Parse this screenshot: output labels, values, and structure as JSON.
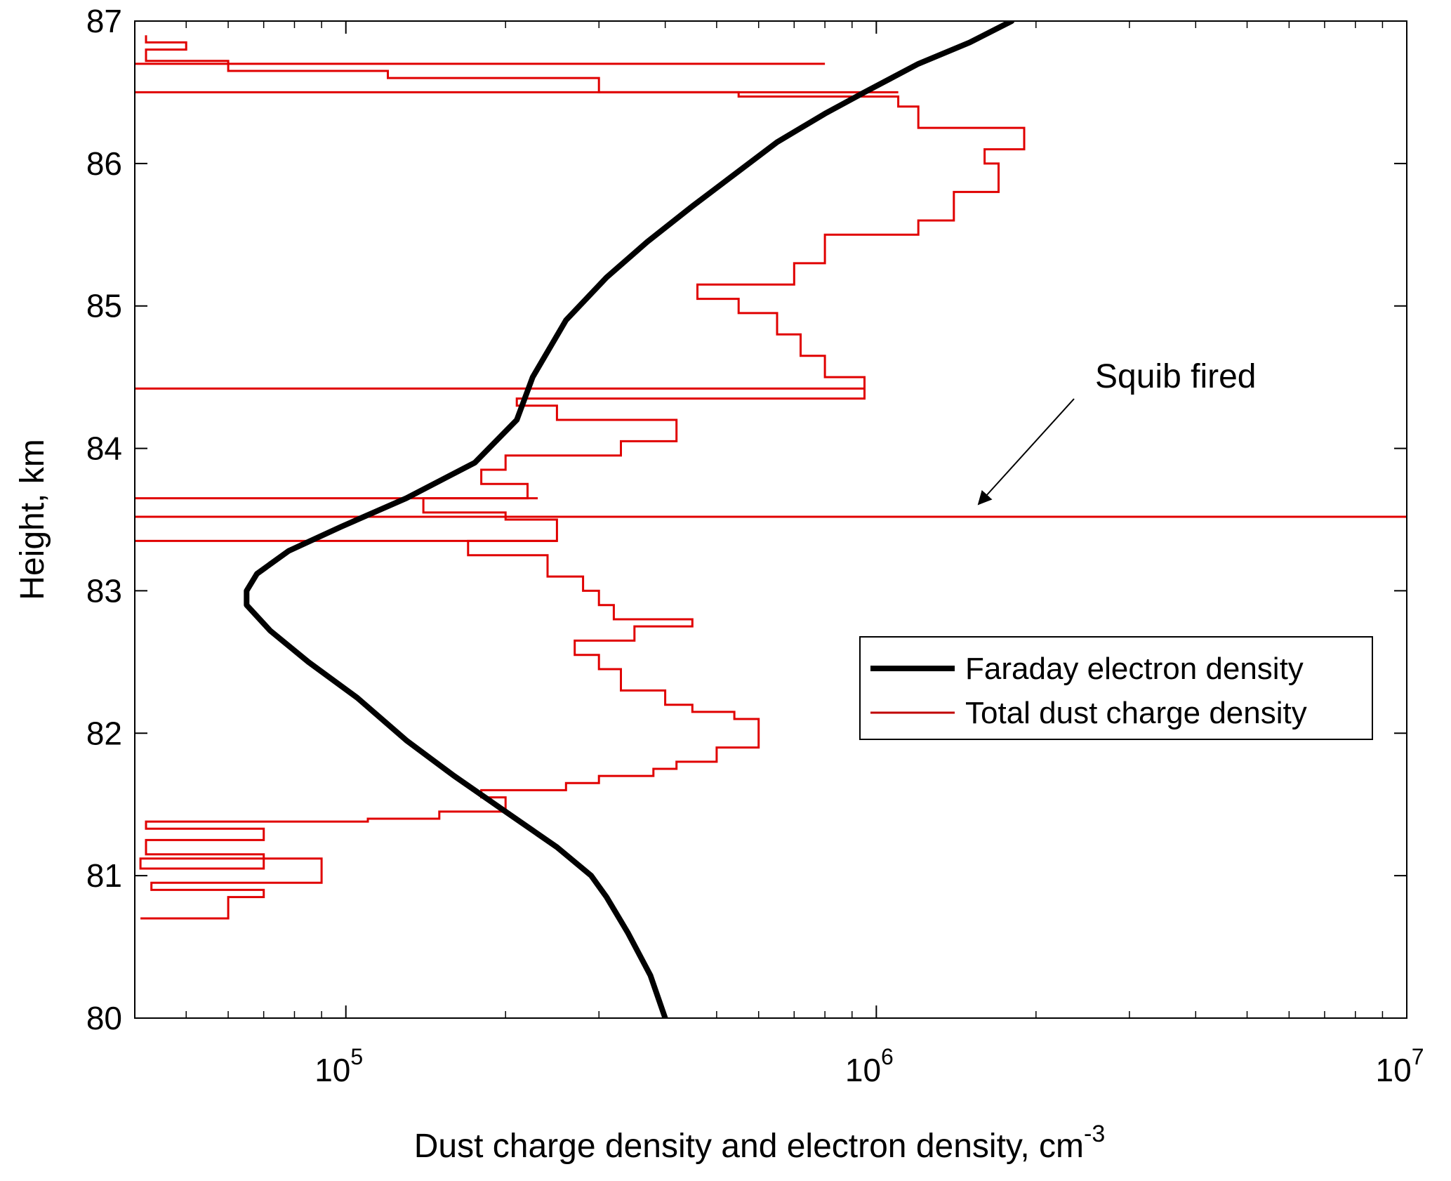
{
  "chart_data": {
    "type": "line",
    "xlabel": "Dust charge density and electron density, cm",
    "xlabel_superscript": "-3",
    "ylabel": "Height, km",
    "xscale": "log",
    "xlim": [
      40000,
      10000000
    ],
    "ylim": [
      80,
      87
    ],
    "x_ticks": [
      {
        "value": 100000,
        "base": "10",
        "exp": "5"
      },
      {
        "value": 1000000,
        "base": "10",
        "exp": "6"
      },
      {
        "value": 10000000,
        "base": "10",
        "exp": "7"
      }
    ],
    "y_ticks": [
      "80",
      "81",
      "82",
      "83",
      "84",
      "85",
      "86",
      "87"
    ],
    "legend_position": "center-right",
    "annotation": {
      "text": "Squib fired",
      "points_to": {
        "x": 1500000,
        "y": 83.6
      }
    },
    "series": [
      {
        "name": "Faraday electron density",
        "color": "#000000",
        "points": [
          [
            400000,
            80.0
          ],
          [
            375000,
            80.3
          ],
          [
            340000,
            80.6
          ],
          [
            310000,
            80.85
          ],
          [
            290000,
            81.0
          ],
          [
            250000,
            81.2
          ],
          [
            200000,
            81.45
          ],
          [
            160000,
            81.7
          ],
          [
            130000,
            81.95
          ],
          [
            105000,
            82.25
          ],
          [
            85000,
            82.5
          ],
          [
            72000,
            82.72
          ],
          [
            65000,
            82.9
          ],
          [
            65000,
            83.0
          ],
          [
            68000,
            83.12
          ],
          [
            78000,
            83.28
          ],
          [
            98000,
            83.45
          ],
          [
            130000,
            83.65
          ],
          [
            175000,
            83.9
          ],
          [
            210000,
            84.2
          ],
          [
            225000,
            84.5
          ],
          [
            260000,
            84.9
          ],
          [
            310000,
            85.2
          ],
          [
            370000,
            85.45
          ],
          [
            450000,
            85.7
          ],
          [
            530000,
            85.9
          ],
          [
            650000,
            86.15
          ],
          [
            800000,
            86.35
          ],
          [
            950000,
            86.5
          ],
          [
            1200000,
            86.7
          ],
          [
            1500000,
            86.85
          ],
          [
            1800000,
            87.0
          ]
        ]
      },
      {
        "name": "Total dust charge density",
        "color": "#e00000",
        "points": [
          [
            41000,
            80.7
          ],
          [
            60000,
            80.85
          ],
          [
            70000,
            80.9
          ],
          [
            43000,
            80.95
          ],
          [
            90000,
            81.12
          ],
          [
            41000,
            81.05
          ],
          [
            70000,
            81.15
          ],
          [
            42000,
            81.25
          ],
          [
            70000,
            81.33
          ],
          [
            42000,
            81.38
          ],
          [
            110000,
            81.4
          ],
          [
            150000,
            81.45
          ],
          [
            200000,
            81.55
          ],
          [
            180000,
            81.6
          ],
          [
            260000,
            81.65
          ],
          [
            300000,
            81.7
          ],
          [
            380000,
            81.75
          ],
          [
            420000,
            81.8
          ],
          [
            500000,
            81.9
          ],
          [
            600000,
            82.1
          ],
          [
            540000,
            82.15
          ],
          [
            450000,
            82.2
          ],
          [
            400000,
            82.3
          ],
          [
            330000,
            82.45
          ],
          [
            300000,
            82.55
          ],
          [
            270000,
            82.65
          ],
          [
            350000,
            82.75
          ],
          [
            450000,
            82.8
          ],
          [
            320000,
            82.9
          ],
          [
            300000,
            83.0
          ],
          [
            280000,
            83.1
          ],
          [
            240000,
            83.25
          ],
          [
            170000,
            83.35
          ],
          [
            250000,
            83.5
          ],
          [
            200000,
            83.55
          ],
          [
            140000,
            83.65
          ],
          [
            220000,
            83.75
          ],
          [
            180000,
            83.85
          ],
          [
            200000,
            83.95
          ],
          [
            330000,
            84.05
          ],
          [
            420000,
            84.2
          ],
          [
            250000,
            84.3
          ],
          [
            210000,
            84.35
          ],
          [
            950000,
            84.5
          ],
          [
            800000,
            84.65
          ],
          [
            720000,
            84.8
          ],
          [
            650000,
            84.95
          ],
          [
            550000,
            85.05
          ],
          [
            460000,
            85.15
          ],
          [
            700000,
            85.3
          ],
          [
            800000,
            85.5
          ],
          [
            1200000,
            85.6
          ],
          [
            1400000,
            85.8
          ],
          [
            1700000,
            86.0
          ],
          [
            1600000,
            86.1
          ],
          [
            1900000,
            86.25
          ],
          [
            1200000,
            86.4
          ],
          [
            1100000,
            86.47
          ],
          [
            550000,
            86.5
          ],
          [
            300000,
            86.6
          ],
          [
            120000,
            86.65
          ],
          [
            60000,
            86.72
          ],
          [
            42000,
            86.8
          ],
          [
            50000,
            86.85
          ],
          [
            42000,
            86.9
          ]
        ],
        "spikes": [
          {
            "y": 83.52,
            "x_min": 40000,
            "x_max": 10000000
          },
          {
            "y": 84.42,
            "x_min": 40000,
            "x_max": 950000
          },
          {
            "y": 83.35,
            "x_min": 40000,
            "x_max": 250000
          },
          {
            "y": 83.65,
            "x_min": 40000,
            "x_max": 230000
          },
          {
            "y": 86.7,
            "x_min": 40000,
            "x_max": 800000
          },
          {
            "y": 86.5,
            "x_min": 40000,
            "x_max": 1100000
          }
        ]
      }
    ]
  }
}
